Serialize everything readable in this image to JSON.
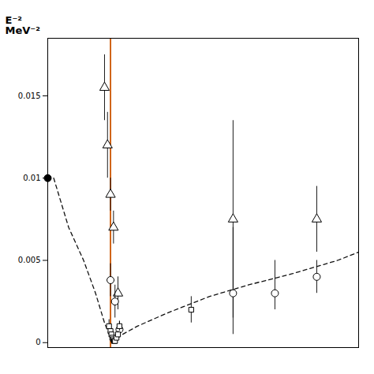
{
  "chart_data": {
    "type": "scatter",
    "ylabel": "E⁻²\nMeV⁻²",
    "xlim": [
      -0.02,
      1.02
    ],
    "ylim": [
      -0.0003,
      0.0185
    ],
    "yticks": [
      0,
      0.005,
      0.01,
      0.015
    ],
    "tick_labels": "y",
    "series": [
      {
        "type": "vline",
        "color": "#cc5500",
        "x": [
          0.19
        ]
      },
      {
        "type": "line",
        "line_style": "dashed",
        "color": "#111111",
        "x": [
          0.0,
          0.05,
          0.1,
          0.14,
          0.17,
          0.19,
          0.205,
          0.22,
          0.28,
          0.38,
          0.52,
          0.65,
          0.8,
          0.95,
          1.02
        ],
        "values": [
          0.01,
          0.007,
          0.005,
          0.003,
          0.0012,
          0.0003,
          0.00015,
          0.0004,
          0.001,
          0.0018,
          0.0028,
          0.0035,
          0.0042,
          0.005,
          0.0055
        ]
      },
      {
        "type": "scatter",
        "marker": "circle",
        "color": "#000000",
        "x": [
          -0.02
        ],
        "values": [
          0.01
        ]
      },
      {
        "type": "scatter",
        "marker": "open_triangle",
        "color": "#000000",
        "x": [
          0.17,
          0.18,
          0.19,
          0.2,
          0.215,
          0.6,
          0.88
        ],
        "values": [
          0.0155,
          0.012,
          0.009,
          0.007,
          0.003,
          0.0075,
          0.0075
        ],
        "yerr_low": [
          0.002,
          0.002,
          0.001,
          0.001,
          0.001,
          0.007,
          0.002
        ],
        "yerr_high": [
          0.002,
          0.002,
          0.001,
          0.001,
          0.001,
          0.006,
          0.002
        ]
      },
      {
        "type": "scatter",
        "marker": "open_circle",
        "color": "#000000",
        "x": [
          0.19,
          0.205,
          0.22,
          0.6,
          0.74,
          0.88
        ],
        "values": [
          0.0038,
          0.0025,
          0.0008,
          0.003,
          0.003,
          0.004
        ],
        "yerr_low": [
          0.001,
          0.001,
          0.0005,
          0.0015,
          0.001,
          0.001
        ],
        "yerr_high": [
          0.001,
          0.001,
          0.0005,
          0.004,
          0.002,
          0.001
        ]
      },
      {
        "type": "scatter",
        "marker": "open_square",
        "color": "#000000",
        "x": [
          0.185,
          0.19,
          0.193,
          0.196,
          0.199,
          0.202,
          0.205,
          0.21,
          0.215,
          0.22,
          0.46
        ],
        "values": [
          0.001,
          0.0007,
          0.0005,
          0.0003,
          0.0002,
          0.0001,
          0.0001,
          0.0003,
          0.0005,
          0.001,
          0.002
        ],
        "yerr_low": [
          0.0004,
          0.0003,
          0.0002,
          0.0001,
          0.0001,
          0.0001,
          0.0001,
          0.0001,
          0.0002,
          0.0003,
          0.0008
        ],
        "yerr_high": [
          0.0004,
          0.0003,
          0.0002,
          0.0001,
          0.0001,
          0.0001,
          0.0001,
          0.0001,
          0.0002,
          0.0003,
          0.0008
        ]
      }
    ]
  }
}
